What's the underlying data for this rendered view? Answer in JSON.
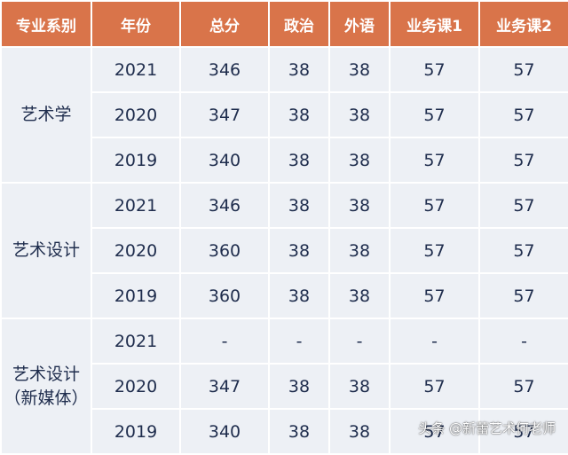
{
  "table": {
    "headers": [
      "专业系别",
      "年份",
      "总分",
      "政治",
      "外语",
      "业务课1",
      "业务课2"
    ],
    "groups": [
      {
        "name_lines": [
          "艺术学"
        ],
        "rows": [
          [
            "2021",
            "346",
            "38",
            "38",
            "57",
            "57"
          ],
          [
            "2020",
            "347",
            "38",
            "38",
            "57",
            "57"
          ],
          [
            "2019",
            "340",
            "38",
            "38",
            "57",
            "57"
          ]
        ]
      },
      {
        "name_lines": [
          "艺术设计"
        ],
        "rows": [
          [
            "2021",
            "346",
            "38",
            "38",
            "57",
            "57"
          ],
          [
            "2020",
            "360",
            "38",
            "38",
            "57",
            "57"
          ],
          [
            "2019",
            "360",
            "38",
            "38",
            "57",
            "57"
          ]
        ]
      },
      {
        "name_lines": [
          "艺术设计",
          "（新媒体）"
        ],
        "rows": [
          [
            "2021",
            "-",
            "-",
            "-",
            "-",
            "-"
          ],
          [
            "2020",
            "347",
            "38",
            "38",
            "57",
            "57"
          ],
          [
            "2019",
            "340",
            "38",
            "38",
            "57",
            "57"
          ]
        ]
      }
    ]
  },
  "watermark": "头条 @新蕾艺术何老师",
  "colors": {
    "header_bg": "#d9744a",
    "header_text": "#ffffff",
    "cell_bg": "#edf0f5",
    "cell_text": "#1f2d4d"
  }
}
